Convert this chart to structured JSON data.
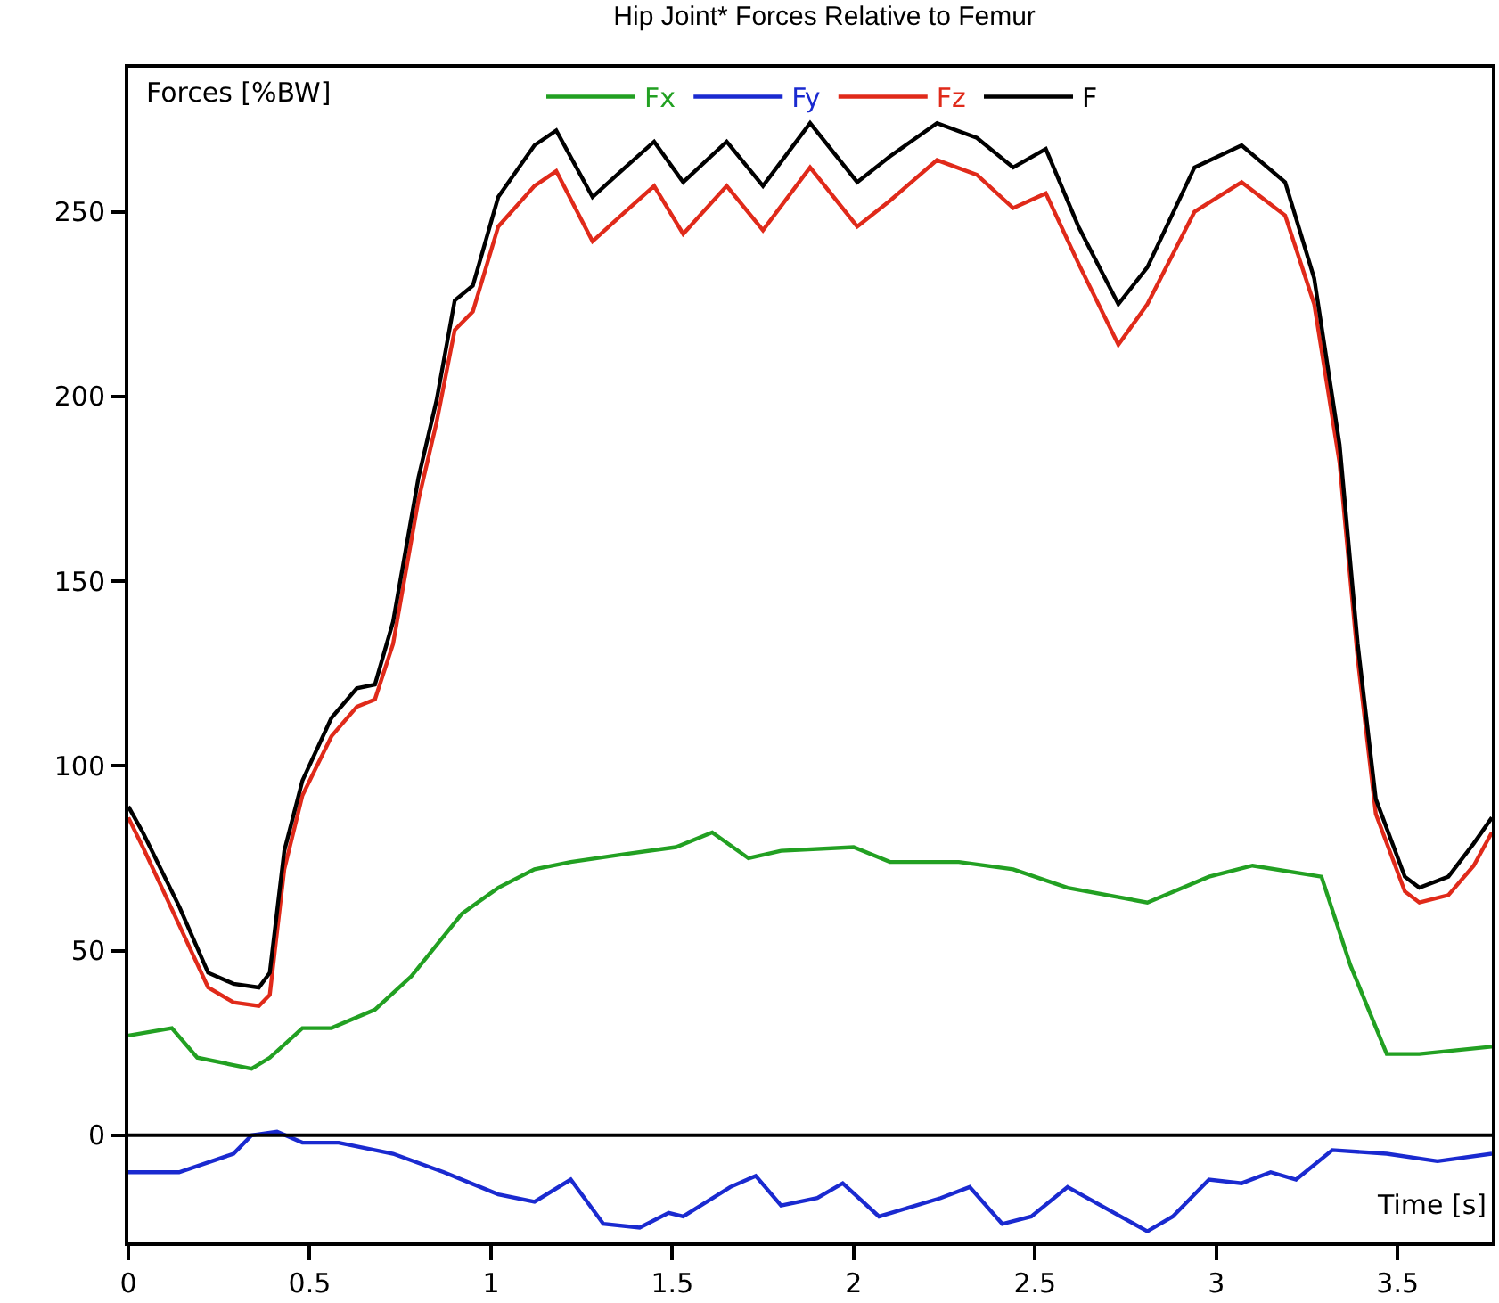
{
  "chart_data": {
    "type": "line",
    "title": "Hip Joint* Forces Relative to Femur",
    "xlabel": "Time [s]",
    "ylabel": "Forces [%BW]",
    "xlim": [
      0,
      3.76
    ],
    "xticks": [
      0,
      0.5,
      1,
      1.5,
      2,
      2.5,
      3,
      3.5
    ],
    "ylim": [
      -29,
      289
    ],
    "yticks": [
      0,
      50,
      100,
      150,
      200,
      250
    ],
    "legend": "top",
    "marker": "none",
    "line_style": "solid",
    "ref_lines": [
      {
        "axis": "y",
        "value": 0,
        "color": "#000000"
      }
    ],
    "series": [
      {
        "name": "Fx",
        "color": "#22a022",
        "x": [
          0,
          0.12,
          0.19,
          0.29,
          0.34,
          0.39,
          0.48,
          0.56,
          0.68,
          0.78,
          0.92,
          1.02,
          1.12,
          1.22,
          1.36,
          1.51,
          1.61,
          1.71,
          1.8,
          2.0,
          2.1,
          2.29,
          2.44,
          2.59,
          2.81,
          2.98,
          3.1,
          3.29,
          3.37,
          3.47,
          3.56,
          3.76
        ],
        "values": [
          27,
          29,
          21,
          19,
          18,
          21,
          29,
          29,
          34,
          43,
          60,
          67,
          72,
          74,
          76,
          78,
          82,
          75,
          77,
          78,
          74,
          74,
          72,
          67,
          63,
          70,
          73,
          70,
          46,
          22,
          22,
          24
        ]
      },
      {
        "name": "Fy",
        "color": "#1a2ad0",
        "x": [
          0,
          0.14,
          0.29,
          0.34,
          0.41,
          0.48,
          0.58,
          0.73,
          0.87,
          1.02,
          1.12,
          1.22,
          1.31,
          1.41,
          1.49,
          1.53,
          1.66,
          1.73,
          1.8,
          1.9,
          1.97,
          2.07,
          2.24,
          2.32,
          2.41,
          2.49,
          2.59,
          2.81,
          2.88,
          2.98,
          3.07,
          3.15,
          3.22,
          3.32,
          3.47,
          3.61,
          3.76
        ],
        "values": [
          -10,
          -10,
          -5,
          0,
          1,
          -2,
          -2,
          -5,
          -10,
          -16,
          -18,
          -12,
          -24,
          -25,
          -21,
          -22,
          -14,
          -11,
          -19,
          -17,
          -13,
          -22,
          -17,
          -14,
          -24,
          -22,
          -14,
          -26,
          -22,
          -12,
          -13,
          -10,
          -12,
          -4,
          -5,
          -7,
          -5
        ]
      },
      {
        "name": "Fz",
        "color": "#e02a1a",
        "x": [
          0,
          0.04,
          0.14,
          0.22,
          0.29,
          0.36,
          0.39,
          0.43,
          0.48,
          0.56,
          0.63,
          0.68,
          0.73,
          0.8,
          0.85,
          0.9,
          0.95,
          1.02,
          1.12,
          1.18,
          1.28,
          1.37,
          1.45,
          1.53,
          1.65,
          1.75,
          1.88,
          2.01,
          2.1,
          2.23,
          2.34,
          2.44,
          2.53,
          2.62,
          2.73,
          2.81,
          2.94,
          3.07,
          3.19,
          3.27,
          3.34,
          3.39,
          3.44,
          3.52,
          3.56,
          3.64,
          3.71,
          3.76
        ],
        "values": [
          86,
          78,
          57,
          40,
          36,
          35,
          38,
          72,
          92,
          108,
          116,
          118,
          133,
          172,
          193,
          218,
          223,
          246,
          257,
          261,
          242,
          250,
          257,
          244,
          257,
          245,
          262,
          246,
          253,
          264,
          260,
          251,
          255,
          236,
          214,
          225,
          250,
          258,
          249,
          225,
          182,
          129,
          87,
          66,
          63,
          65,
          73,
          82
        ]
      },
      {
        "name": "F",
        "color": "#000000",
        "x": [
          0,
          0.04,
          0.14,
          0.22,
          0.29,
          0.36,
          0.39,
          0.43,
          0.48,
          0.56,
          0.63,
          0.68,
          0.73,
          0.8,
          0.85,
          0.9,
          0.95,
          1.02,
          1.12,
          1.18,
          1.28,
          1.37,
          1.45,
          1.53,
          1.65,
          1.75,
          1.88,
          2.01,
          2.1,
          2.23,
          2.34,
          2.44,
          2.53,
          2.62,
          2.73,
          2.81,
          2.94,
          3.07,
          3.19,
          3.27,
          3.34,
          3.39,
          3.44,
          3.52,
          3.56,
          3.64,
          3.71,
          3.76
        ],
        "values": [
          89,
          82,
          62,
          44,
          41,
          40,
          44,
          77,
          96,
          113,
          121,
          122,
          139,
          178,
          199,
          226,
          230,
          254,
          268,
          272,
          254,
          262,
          269,
          258,
          269,
          257,
          274,
          258,
          265,
          274,
          270,
          262,
          267,
          246,
          225,
          235,
          262,
          268,
          258,
          232,
          187,
          133,
          91,
          70,
          67,
          70,
          79,
          86
        ]
      }
    ]
  }
}
